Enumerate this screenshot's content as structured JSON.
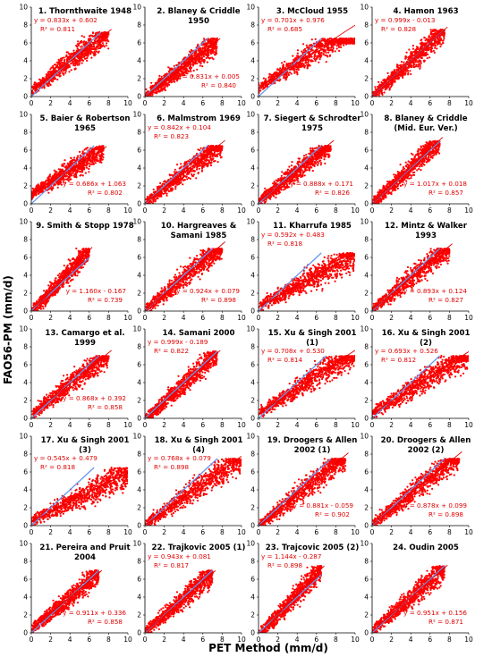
{
  "figure": {
    "ylabel": "FAO56-PM (mm/d)",
    "xlabel": "PET Method (mm/d)",
    "colors": {
      "points": "#ff0000",
      "fit_line": "#e00000",
      "one_to_one": "#6495ed",
      "annotation": "#e00000"
    }
  },
  "chart_data": [
    {
      "type": "scatter",
      "title": [
        "1. Thornthwaite 1948"
      ],
      "xlim": [
        0,
        10
      ],
      "ylim": [
        0,
        10
      ],
      "xticks": [
        0,
        2,
        4,
        6,
        8,
        10
      ],
      "yticks": [
        0,
        2,
        4,
        6,
        8,
        10
      ],
      "grid": false,
      "equation": "y = 0.833x + 0.602",
      "r2": "R² = 0.811",
      "annotation_position": "top-left",
      "fit": {
        "slope": 0.833,
        "intercept": 0.602
      },
      "points_extent": {
        "x": [
          0,
          8
        ],
        "y": [
          0,
          7.2
        ]
      }
    },
    {
      "type": "scatter",
      "title": [
        "2. Blaney & Criddle",
        "1950"
      ],
      "xlim": [
        0,
        10
      ],
      "ylim": [
        0,
        10
      ],
      "xticks": [
        0,
        2,
        4,
        6,
        8,
        10
      ],
      "yticks": [
        0,
        2,
        4,
        6,
        8,
        10
      ],
      "grid": false,
      "equation": "y = 0.831x + 0.005",
      "r2": "R² = 0.840",
      "annotation_position": "bottom-right",
      "fit": {
        "slope": 0.831,
        "intercept": 0.005
      },
      "points_extent": {
        "x": [
          0,
          7.5
        ],
        "y": [
          0,
          6.5
        ]
      }
    },
    {
      "type": "scatter",
      "title": [
        "3. McCloud 1955"
      ],
      "xlim": [
        0,
        10
      ],
      "ylim": [
        0,
        10
      ],
      "xticks": [
        0,
        2,
        4,
        6,
        8,
        10
      ],
      "yticks": [
        0,
        2,
        4,
        6,
        8,
        10
      ],
      "grid": false,
      "equation": "y = 0.701x + 0.976",
      "r2": "R² = 0.685",
      "annotation_position": "top-left",
      "fit": {
        "slope": 0.701,
        "intercept": 0.976
      },
      "points_extent": {
        "x": [
          0,
          10
        ],
        "y": [
          0,
          6.5
        ]
      }
    },
    {
      "type": "scatter",
      "title": [
        "4. Hamon 1963"
      ],
      "xlim": [
        0,
        10
      ],
      "ylim": [
        0,
        10
      ],
      "xticks": [
        0,
        2,
        4,
        6,
        8,
        10
      ],
      "yticks": [
        0,
        2,
        4,
        6,
        8,
        10
      ],
      "grid": false,
      "equation": "y = 0.999x - 0.013",
      "r2": "R² = 0.828",
      "annotation_position": "top-left",
      "fit": {
        "slope": 0.999,
        "intercept": -0.013
      },
      "points_extent": {
        "x": [
          0,
          7.5
        ],
        "y": [
          0,
          7.5
        ]
      }
    },
    {
      "type": "scatter",
      "title": [
        "5. Baier & Robertson",
        "1965"
      ],
      "xlim": [
        0,
        10
      ],
      "ylim": [
        0,
        10
      ],
      "xticks": [
        0,
        2,
        4,
        6,
        8,
        10
      ],
      "yticks": [
        0,
        2,
        4,
        6,
        8,
        10
      ],
      "grid": false,
      "equation": "y = 0.686x + 1.063",
      "r2": "R² = 0.802",
      "annotation_position": "bottom-right",
      "fit": {
        "slope": 0.686,
        "intercept": 1.063
      },
      "points_extent": {
        "x": [
          0,
          7.5
        ],
        "y": [
          0,
          6.5
        ]
      }
    },
    {
      "type": "scatter",
      "title": [
        "6. Malmstrom 1969"
      ],
      "xlim": [
        0,
        10
      ],
      "ylim": [
        0,
        10
      ],
      "xticks": [
        0,
        2,
        4,
        6,
        8,
        10
      ],
      "yticks": [
        0,
        2,
        4,
        6,
        8,
        10
      ],
      "grid": false,
      "equation": "y = 0.842x + 0.104",
      "r2": "R² = 0.823",
      "annotation_position": "top-left",
      "fit": {
        "slope": 0.842,
        "intercept": 0.104
      },
      "points_extent": {
        "x": [
          0,
          8
        ],
        "y": [
          0,
          6.5
        ]
      }
    },
    {
      "type": "scatter",
      "title": [
        "7. Siegert & Schrodter",
        "1975"
      ],
      "xlim": [
        0,
        10
      ],
      "ylim": [
        0,
        10
      ],
      "xticks": [
        0,
        2,
        4,
        6,
        8,
        10
      ],
      "yticks": [
        0,
        2,
        4,
        6,
        8,
        10
      ],
      "grid": false,
      "equation": "y = 0.888x + 0.171",
      "r2": "R² = 0.826",
      "annotation_position": "bottom-right",
      "fit": {
        "slope": 0.888,
        "intercept": 0.171
      },
      "points_extent": {
        "x": [
          0,
          7.5
        ],
        "y": [
          0,
          6.5
        ]
      }
    },
    {
      "type": "scatter",
      "title": [
        "8. Blaney & Criddle",
        "(Mid. Eur. Ver.)"
      ],
      "xlim": [
        0,
        10
      ],
      "ylim": [
        0,
        10
      ],
      "xticks": [
        0,
        2,
        4,
        6,
        8,
        10
      ],
      "yticks": [
        0,
        2,
        4,
        6,
        8,
        10
      ],
      "grid": false,
      "equation": "y = 1.017x + 0.018",
      "r2": "R² = 0.857",
      "annotation_position": "bottom-right",
      "fit": {
        "slope": 1.017,
        "intercept": 0.018
      },
      "points_extent": {
        "x": [
          0,
          7
        ],
        "y": [
          0,
          7
        ]
      }
    },
    {
      "type": "scatter",
      "title": [
        "9. Smith & Stopp 1978"
      ],
      "xlim": [
        0,
        10
      ],
      "ylim": [
        0,
        10
      ],
      "xticks": [
        0,
        2,
        4,
        6,
        8,
        10
      ],
      "yticks": [
        0,
        2,
        4,
        6,
        8,
        10
      ],
      "grid": false,
      "equation": "y = 1.160x - 0.167",
      "r2": "R² = 0.739",
      "annotation_position": "bottom-right",
      "fit": {
        "slope": 1.16,
        "intercept": -0.167
      },
      "points_extent": {
        "x": [
          0,
          6
        ],
        "y": [
          0,
          7
        ]
      }
    },
    {
      "type": "scatter",
      "title": [
        "10. Hargreaves &",
        "Samani 1985"
      ],
      "xlim": [
        0,
        10
      ],
      "ylim": [
        0,
        10
      ],
      "xticks": [
        0,
        2,
        4,
        6,
        8,
        10
      ],
      "yticks": [
        0,
        2,
        4,
        6,
        8,
        10
      ],
      "grid": false,
      "equation": "y = 0.924x + 0.079",
      "r2": "R² = 0.898",
      "annotation_position": "bottom-right",
      "fit": {
        "slope": 0.924,
        "intercept": 0.079
      },
      "points_extent": {
        "x": [
          0,
          8
        ],
        "y": [
          0,
          7
        ]
      }
    },
    {
      "type": "scatter",
      "title": [
        "11. Kharrufa 1985"
      ],
      "xlim": [
        0,
        10
      ],
      "ylim": [
        0,
        10
      ],
      "xticks": [
        0,
        2,
        4,
        6,
        8,
        10
      ],
      "yticks": [
        0,
        2,
        4,
        6,
        8,
        10
      ],
      "grid": false,
      "equation": "y = 0.592x + 0.483",
      "r2": "R² = 0.818",
      "annotation_position": "top-left",
      "fit": {
        "slope": 0.592,
        "intercept": 0.483
      },
      "points_extent": {
        "x": [
          0,
          10
        ],
        "y": [
          0,
          6.5
        ]
      }
    },
    {
      "type": "scatter",
      "title": [
        "12. Mintz & Walker",
        "1993"
      ],
      "xlim": [
        0,
        10
      ],
      "ylim": [
        0,
        10
      ],
      "xticks": [
        0,
        2,
        4,
        6,
        8,
        10
      ],
      "yticks": [
        0,
        2,
        4,
        6,
        8,
        10
      ],
      "grid": false,
      "equation": "y = 0.893x + 0.124",
      "r2": "R² = 0.827",
      "annotation_position": "bottom-right",
      "fit": {
        "slope": 0.893,
        "intercept": 0.124
      },
      "points_extent": {
        "x": [
          0,
          8
        ],
        "y": [
          0,
          7
        ]
      }
    },
    {
      "type": "scatter",
      "title": [
        "13. Camargo et al.",
        "1999"
      ],
      "xlim": [
        0,
        10
      ],
      "ylim": [
        0,
        10
      ],
      "xticks": [
        0,
        2,
        4,
        6,
        8,
        10
      ],
      "yticks": [
        0,
        2,
        4,
        6,
        8,
        10
      ],
      "grid": false,
      "equation": "y = 0.868x + 0.392",
      "r2": "R² = 0.858",
      "annotation_position": "bottom-right",
      "fit": {
        "slope": 0.868,
        "intercept": 0.392
      },
      "points_extent": {
        "x": [
          0,
          8
        ],
        "y": [
          0,
          7
        ]
      }
    },
    {
      "type": "scatter",
      "title": [
        "14. Samani 2000"
      ],
      "xlim": [
        0,
        10
      ],
      "ylim": [
        0,
        10
      ],
      "xticks": [
        0,
        2,
        4,
        6,
        8,
        10
      ],
      "yticks": [
        0,
        2,
        4,
        6,
        8,
        10
      ],
      "grid": false,
      "equation": "y = 0.999x - 0.189",
      "r2": "R² = 0.822",
      "annotation_position": "top-left",
      "fit": {
        "slope": 0.999,
        "intercept": -0.189
      },
      "points_extent": {
        "x": [
          0,
          7.5
        ],
        "y": [
          0,
          7.5
        ]
      }
    },
    {
      "type": "scatter",
      "title": [
        "15. Xu & Singh 2001",
        "(1)"
      ],
      "xlim": [
        0,
        10
      ],
      "ylim": [
        0,
        10
      ],
      "xticks": [
        0,
        2,
        4,
        6,
        8,
        10
      ],
      "yticks": [
        0,
        2,
        4,
        6,
        8,
        10
      ],
      "grid": false,
      "equation": "y = 0.708x + 0.530",
      "r2": "R² = 0.814",
      "annotation_position": "top-left",
      "fit": {
        "slope": 0.708,
        "intercept": 0.53
      },
      "points_extent": {
        "x": [
          0,
          10
        ],
        "y": [
          0,
          7
        ]
      }
    },
    {
      "type": "scatter",
      "title": [
        "16. Xu & Singh 2001",
        "(2)"
      ],
      "xlim": [
        0,
        10
      ],
      "ylim": [
        0,
        10
      ],
      "xticks": [
        0,
        2,
        4,
        6,
        8,
        10
      ],
      "yticks": [
        0,
        2,
        4,
        6,
        8,
        10
      ],
      "grid": false,
      "equation": "y = 0.693x + 0.526",
      "r2": "R² = 0.812",
      "annotation_position": "top-left",
      "fit": {
        "slope": 0.693,
        "intercept": 0.526
      },
      "points_extent": {
        "x": [
          0,
          10
        ],
        "y": [
          0,
          7
        ]
      }
    },
    {
      "type": "scatter",
      "title": [
        "17. Xu & Singh 2001",
        "(3)"
      ],
      "xlim": [
        0,
        10
      ],
      "ylim": [
        0,
        10
      ],
      "xticks": [
        0,
        2,
        4,
        6,
        8,
        10
      ],
      "yticks": [
        0,
        2,
        4,
        6,
        8,
        10
      ],
      "grid": false,
      "equation": "y = 0.545x + 0.479",
      "r2": "R² = 0.818",
      "annotation_position": "top-left",
      "fit": {
        "slope": 0.545,
        "intercept": 0.479
      },
      "points_extent": {
        "x": [
          0,
          10
        ],
        "y": [
          0,
          6.5
        ]
      }
    },
    {
      "type": "scatter",
      "title": [
        "18. Xu & Singh 2001",
        "(4)"
      ],
      "xlim": [
        0,
        10
      ],
      "ylim": [
        0,
        10
      ],
      "xticks": [
        0,
        2,
        4,
        6,
        8,
        10
      ],
      "yticks": [
        0,
        2,
        4,
        6,
        8,
        10
      ],
      "grid": false,
      "equation": "y = 0.768x + 0.079",
      "r2": "R² = 0.898",
      "annotation_position": "top-left",
      "fit": {
        "slope": 0.768,
        "intercept": 0.079
      },
      "points_extent": {
        "x": [
          0,
          10
        ],
        "y": [
          0,
          7.5
        ]
      }
    },
    {
      "type": "scatter",
      "title": [
        "19. Droogers & Allen",
        "2002 (1)"
      ],
      "xlim": [
        0,
        10
      ],
      "ylim": [
        0,
        10
      ],
      "xticks": [
        0,
        2,
        4,
        6,
        8,
        10
      ],
      "yticks": [
        0,
        2,
        4,
        6,
        8,
        10
      ],
      "grid": false,
      "equation": "y = 0.881x - 0.059",
      "r2": "R² = 0.902",
      "annotation_position": "bottom-right",
      "fit": {
        "slope": 0.881,
        "intercept": -0.059
      },
      "points_extent": {
        "x": [
          0,
          9
        ],
        "y": [
          0,
          7.5
        ]
      }
    },
    {
      "type": "scatter",
      "title": [
        "20. Droogers & Allen",
        "2002 (2)"
      ],
      "xlim": [
        0,
        10
      ],
      "ylim": [
        0,
        10
      ],
      "xticks": [
        0,
        2,
        4,
        6,
        8,
        10
      ],
      "yticks": [
        0,
        2,
        4,
        6,
        8,
        10
      ],
      "grid": false,
      "equation": "y = 0.878x + 0.099",
      "r2": "R² = 0.898",
      "annotation_position": "bottom-right",
      "fit": {
        "slope": 0.878,
        "intercept": 0.099
      },
      "points_extent": {
        "x": [
          0,
          9
        ],
        "y": [
          0,
          7.5
        ]
      }
    },
    {
      "type": "scatter",
      "title": [
        "21. Pereira and Pruit",
        "2004"
      ],
      "xlim": [
        0,
        10
      ],
      "ylim": [
        0,
        10
      ],
      "xticks": [
        0,
        2,
        4,
        6,
        8,
        10
      ],
      "yticks": [
        0,
        2,
        4,
        6,
        8,
        10
      ],
      "grid": false,
      "equation": "y = 0.911x + 0.336",
      "r2": "R² = 0.858",
      "annotation_position": "bottom-right",
      "fit": {
        "slope": 0.911,
        "intercept": 0.336
      },
      "points_extent": {
        "x": [
          0,
          7
        ],
        "y": [
          0,
          7
        ]
      }
    },
    {
      "type": "scatter",
      "title": [
        "22. Trajkovic 2005 (1)"
      ],
      "xlim": [
        0,
        10
      ],
      "ylim": [
        0,
        10
      ],
      "xticks": [
        0,
        2,
        4,
        6,
        8,
        10
      ],
      "yticks": [
        0,
        2,
        4,
        6,
        8,
        10
      ],
      "grid": false,
      "equation": "y = 0.943x + 0.081",
      "r2": "R² = 0.817",
      "annotation_position": "top-left",
      "fit": {
        "slope": 0.943,
        "intercept": 0.081
      },
      "points_extent": {
        "x": [
          0,
          7
        ],
        "y": [
          0,
          7
        ]
      }
    },
    {
      "type": "scatter",
      "title": [
        "23. Trajcovic 2005 (2)"
      ],
      "xlim": [
        0,
        10
      ],
      "ylim": [
        0,
        10
      ],
      "xticks": [
        0,
        2,
        4,
        6,
        8,
        10
      ],
      "yticks": [
        0,
        2,
        4,
        6,
        8,
        10
      ],
      "grid": false,
      "equation": "y = 1.144x - 0.287",
      "r2": "R² = 0.898",
      "annotation_position": "top-left",
      "fit": {
        "slope": 1.144,
        "intercept": -0.287
      },
      "points_extent": {
        "x": [
          0,
          6.5
        ],
        "y": [
          0,
          7.5
        ]
      }
    },
    {
      "type": "scatter",
      "title": [
        "24. Oudin 2005"
      ],
      "xlim": [
        0,
        10
      ],
      "ylim": [
        0,
        10
      ],
      "xticks": [
        0,
        2,
        4,
        6,
        8,
        10
      ],
      "yticks": [
        0,
        2,
        4,
        6,
        8,
        10
      ],
      "grid": false,
      "equation": "y = 0.951x + 0.156",
      "r2": "R² = 0.871",
      "annotation_position": "bottom-right",
      "fit": {
        "slope": 0.951,
        "intercept": 0.156
      },
      "points_extent": {
        "x": [
          0,
          7.5
        ],
        "y": [
          0,
          7.5
        ]
      }
    }
  ]
}
